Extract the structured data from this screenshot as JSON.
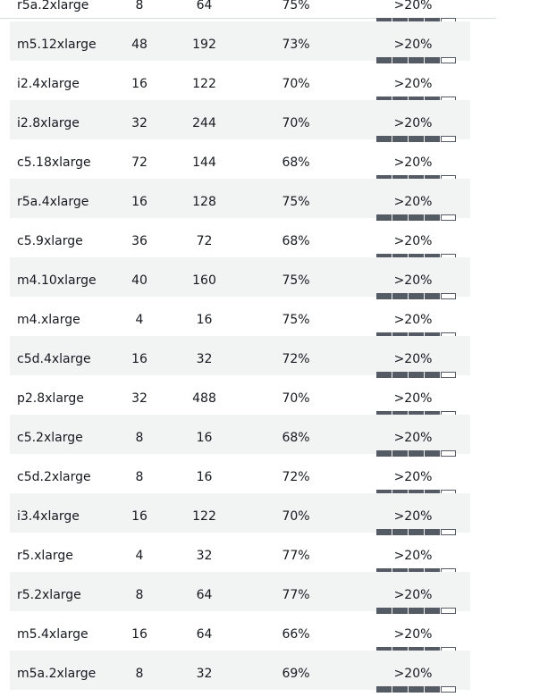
{
  "table": {
    "rows": [
      {
        "type": "r5a.2xlarge",
        "vcpu": "8",
        "memory": "64",
        "savings": "75%",
        "frequency": ">20%",
        "frequency_level": 4,
        "frequency_max": 5
      },
      {
        "type": "m5.12xlarge",
        "vcpu": "48",
        "memory": "192",
        "savings": "73%",
        "frequency": ">20%",
        "frequency_level": 4,
        "frequency_max": 5
      },
      {
        "type": "i2.4xlarge",
        "vcpu": "16",
        "memory": "122",
        "savings": "70%",
        "frequency": ">20%",
        "frequency_level": 4,
        "frequency_max": 5
      },
      {
        "type": "i2.8xlarge",
        "vcpu": "32",
        "memory": "244",
        "savings": "70%",
        "frequency": ">20%",
        "frequency_level": 4,
        "frequency_max": 5
      },
      {
        "type": "c5.18xlarge",
        "vcpu": "72",
        "memory": "144",
        "savings": "68%",
        "frequency": ">20%",
        "frequency_level": 4,
        "frequency_max": 5
      },
      {
        "type": "r5a.4xlarge",
        "vcpu": "16",
        "memory": "128",
        "savings": "75%",
        "frequency": ">20%",
        "frequency_level": 4,
        "frequency_max": 5
      },
      {
        "type": "c5.9xlarge",
        "vcpu": "36",
        "memory": "72",
        "savings": "68%",
        "frequency": ">20%",
        "frequency_level": 4,
        "frequency_max": 5
      },
      {
        "type": "m4.10xlarge",
        "vcpu": "40",
        "memory": "160",
        "savings": "75%",
        "frequency": ">20%",
        "frequency_level": 4,
        "frequency_max": 5
      },
      {
        "type": "m4.xlarge",
        "vcpu": "4",
        "memory": "16",
        "savings": "75%",
        "frequency": ">20%",
        "frequency_level": 4,
        "frequency_max": 5
      },
      {
        "type": "c5d.4xlarge",
        "vcpu": "16",
        "memory": "32",
        "savings": "72%",
        "frequency": ">20%",
        "frequency_level": 4,
        "frequency_max": 5
      },
      {
        "type": "p2.8xlarge",
        "vcpu": "32",
        "memory": "488",
        "savings": "70%",
        "frequency": ">20%",
        "frequency_level": 4,
        "frequency_max": 5
      },
      {
        "type": "c5.2xlarge",
        "vcpu": "8",
        "memory": "16",
        "savings": "68%",
        "frequency": ">20%",
        "frequency_level": 4,
        "frequency_max": 5
      },
      {
        "type": "c5d.2xlarge",
        "vcpu": "8",
        "memory": "16",
        "savings": "72%",
        "frequency": ">20%",
        "frequency_level": 4,
        "frequency_max": 5
      },
      {
        "type": "i3.4xlarge",
        "vcpu": "16",
        "memory": "122",
        "savings": "70%",
        "frequency": ">20%",
        "frequency_level": 4,
        "frequency_max": 5
      },
      {
        "type": "r5.xlarge",
        "vcpu": "4",
        "memory": "32",
        "savings": "77%",
        "frequency": ">20%",
        "frequency_level": 4,
        "frequency_max": 5
      },
      {
        "type": "r5.2xlarge",
        "vcpu": "8",
        "memory": "64",
        "savings": "77%",
        "frequency": ">20%",
        "frequency_level": 4,
        "frequency_max": 5
      },
      {
        "type": "m5.4xlarge",
        "vcpu": "16",
        "memory": "64",
        "savings": "66%",
        "frequency": ">20%",
        "frequency_level": 4,
        "frequency_max": 5
      },
      {
        "type": "m5a.2xlarge",
        "vcpu": "8",
        "memory": "32",
        "savings": "69%",
        "frequency": ">20%",
        "frequency_level": 4,
        "frequency_max": 5
      }
    ]
  },
  "colors": {
    "row_alt_bg": "#f2f3f3",
    "text": "#16191f",
    "bar_fill": "#545b64"
  }
}
